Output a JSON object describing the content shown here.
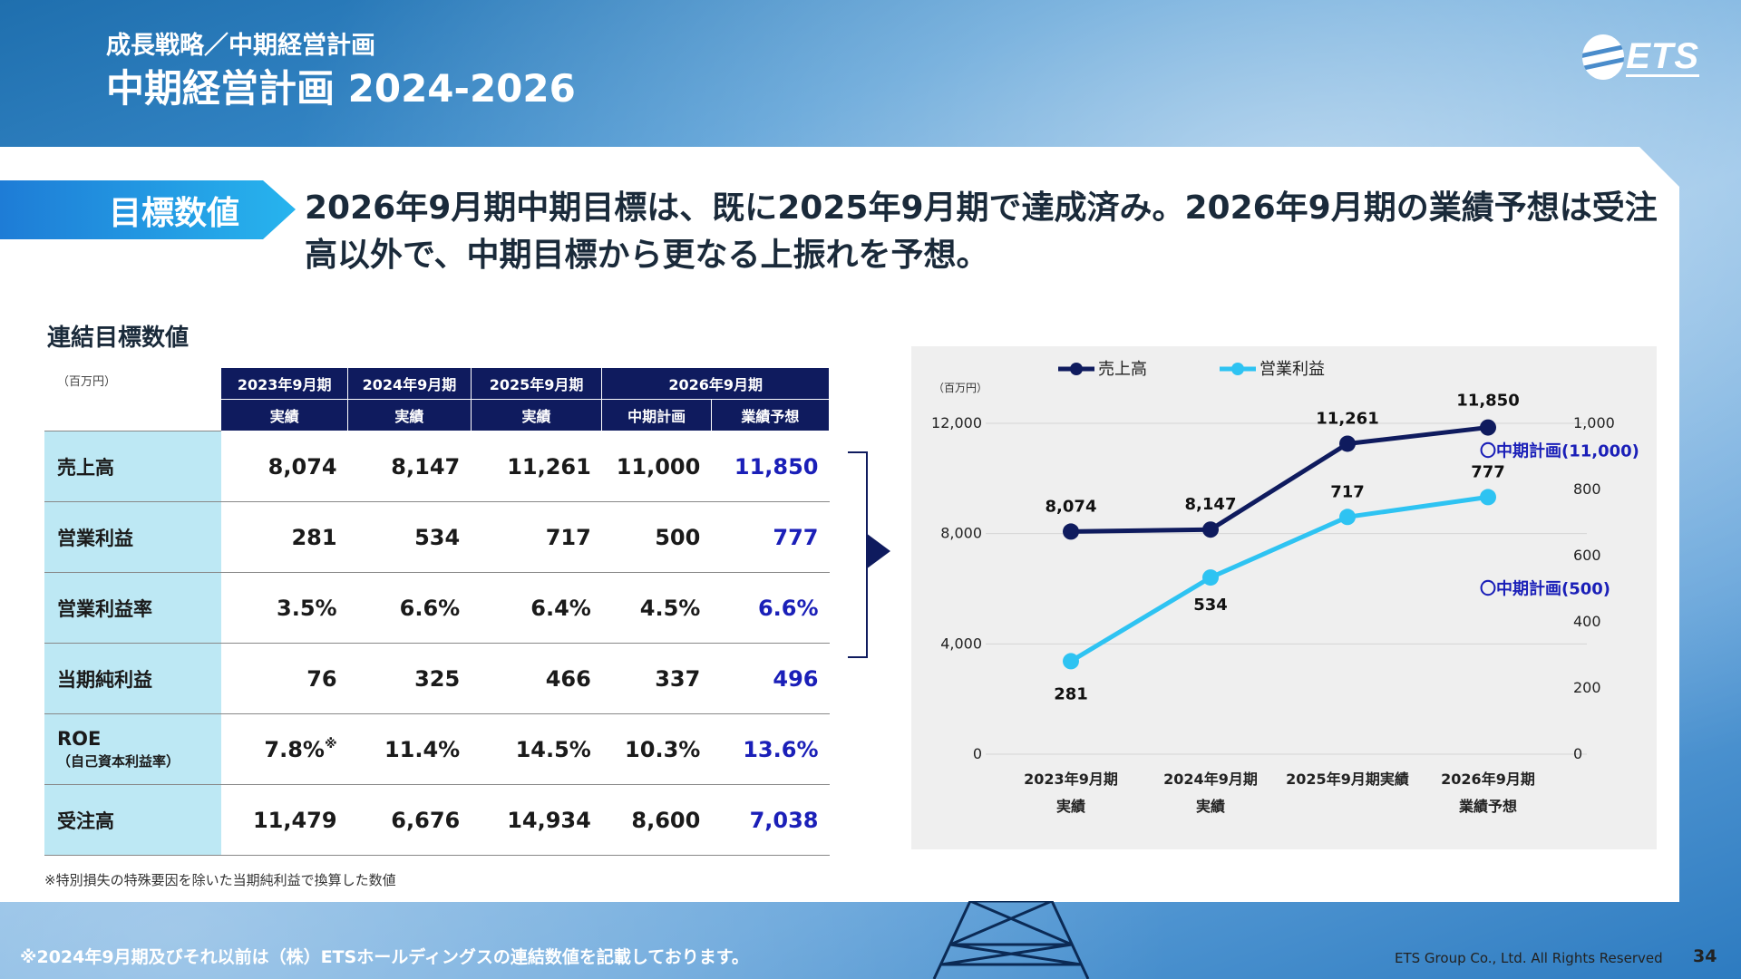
{
  "header": {
    "subtitle": "成長戦略／中期経営計画",
    "title": "中期経営計画 2024-2026",
    "logo_text": "ETS"
  },
  "target_label": "目標数値",
  "headline": "2026年9月期中期目標は、既に2025年9月期で達成済み。2026年9月期の業績予想は受注高以外で、中期目標から更なる上振れを予想。",
  "table": {
    "caption": "連結目標数値",
    "unit": "（百万円）",
    "period_headers": [
      "2023年9月期",
      "2024年9月期",
      "2025年9月期",
      "2026年9月期"
    ],
    "sub_headers": [
      "実績",
      "実績",
      "実績",
      "中期計画",
      "業績予想"
    ],
    "rows": [
      {
        "label": "売上高",
        "values": [
          "8,074",
          "8,147",
          "11,261",
          "11,000",
          "11,850"
        ]
      },
      {
        "label": "営業利益",
        "values": [
          "281",
          "534",
          "717",
          "500",
          "777"
        ]
      },
      {
        "label": "営業利益率",
        "values": [
          "3.5%",
          "6.6%",
          "6.4%",
          "4.5%",
          "6.6%"
        ]
      },
      {
        "label": "当期純利益",
        "values": [
          "76",
          "325",
          "466",
          "337",
          "496"
        ]
      },
      {
        "label": "ROE",
        "sublabel": "（自己資本利益率）",
        "values": [
          "7.8%",
          "11.4%",
          "14.5%",
          "10.3%",
          "13.6%"
        ],
        "mark": "※"
      },
      {
        "label": "受注高",
        "values": [
          "11,479",
          "6,676",
          "14,934",
          "8,600",
          "7,038"
        ]
      }
    ],
    "footnote": "※特別損失の特殊要因を除いた当期純利益で換算した数値"
  },
  "chart_data": {
    "type": "line",
    "unit": "（百万円）",
    "categories": [
      "2023年9月期\n実績",
      "2024年9月期\n実績",
      "2025年9月期実績",
      "2026年9月期\n業績予想"
    ],
    "series": [
      {
        "name": "売上高",
        "axis": "left",
        "values": [
          8074,
          8147,
          11261,
          11850
        ],
        "labels": [
          "8,074",
          "8,147",
          "11,261",
          "11,850"
        ],
        "color": "#0f1b5e"
      },
      {
        "name": "営業利益",
        "axis": "right",
        "values": [
          281,
          534,
          717,
          777
        ],
        "labels": [
          "281",
          "534",
          "717",
          "777"
        ],
        "color": "#2ec3f2"
      }
    ],
    "y_left": {
      "min": 0,
      "max": 12000,
      "ticks": [
        "0",
        "4,000",
        "8,000",
        "12,000"
      ]
    },
    "y_right": {
      "min": 0,
      "max": 1000,
      "ticks": [
        "0",
        "200",
        "400",
        "600",
        "800",
        "1,000"
      ]
    },
    "annotations": [
      {
        "text": "〇中期計画(11,000)",
        "series": "売上高",
        "value": 11000
      },
      {
        "text": "〇中期計画(500)",
        "series": "営業利益",
        "value": 500
      }
    ],
    "legend_position": "top",
    "grid": true
  },
  "footer": {
    "note": "※2024年9月期及びそれ以前は（株）ETSホールディングスの連結数値を記載しております。",
    "copyright": "ETS Group Co., Ltd. All Rights Reserved",
    "page": "34"
  }
}
